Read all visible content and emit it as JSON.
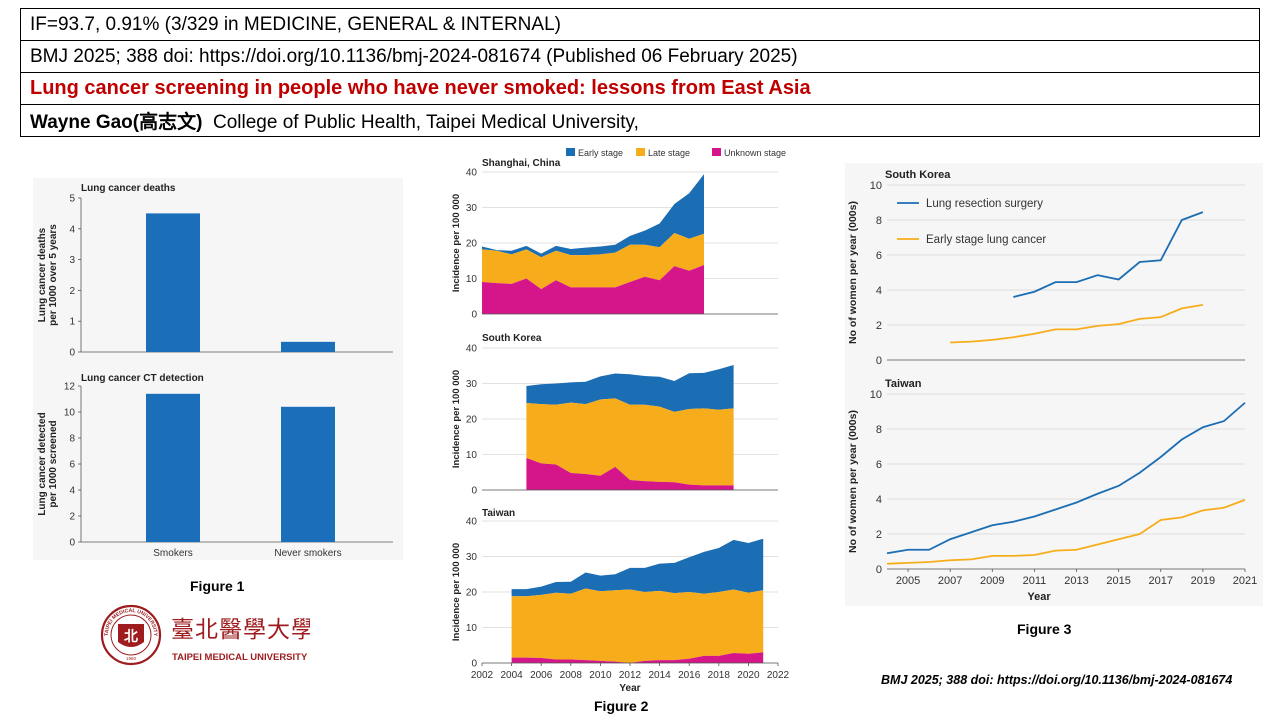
{
  "header": {
    "row1": "IF=93.7, 0.91% (3/329 in MEDICINE, GENERAL & INTERNAL)",
    "row2": "BMJ 2025; 388 doi: https://doi.org/10.1136/bmj-2024-081674 (Published 06 February 2025)",
    "row3": "Lung cancer screening in people who have never smoked: lessons from East Asia",
    "author_name": "Wayne Gao(高志文)",
    "author_affiliation": "College of Public Health, Taipei Medical University,"
  },
  "figure_labels": {
    "fig1": "Figure 1",
    "fig2": "Figure 2",
    "fig3": "Figure 3"
  },
  "logo": {
    "chinese": "臺北醫學大學",
    "english": "TAIPEI MEDICAL UNIVERSITY",
    "ring_text": "TAIPEI MEDICAL UNIVERSITY",
    "year": "1960",
    "seal_char": "北"
  },
  "footnote": "BMJ 2025; 388 doi: https://doi.org/10.1136/bmj-2024-081674",
  "colors": {
    "blue": "#1b6db4",
    "orange": "#f7ad1b",
    "magenta": "#d4168a",
    "title_red": "#c00000",
    "bar_blue": "#1b6fba",
    "logo_red": "#9e1b1e"
  },
  "chart_data": [
    {
      "id": "fig1a",
      "type": "bar",
      "title": "Lung cancer deaths",
      "ylabel": "Lung cancer deaths per 1000 over 5 years",
      "categories": [
        "Smokers",
        "Never smokers"
      ],
      "values": [
        4.5,
        0.33
      ],
      "ylim": [
        0,
        5
      ],
      "yticks": [
        "0",
        "1",
        "2",
        "3",
        "4",
        "5"
      ],
      "show_xticklabels": false,
      "grid": false
    },
    {
      "id": "fig1b",
      "type": "bar",
      "title": "Lung cancer CT detection",
      "ylabel": "Lung cancer detected per 1000 screened",
      "categories": [
        "Smokers",
        "Never smokers"
      ],
      "values": [
        11.4,
        10.4
      ],
      "ylim": [
        0,
        12
      ],
      "yticks": [
        "0",
        "2",
        "4",
        "6",
        "8",
        "10",
        "12"
      ],
      "show_xticklabels": true,
      "grid": false
    },
    {
      "id": "fig2",
      "type": "area",
      "stacked": true,
      "legend": [
        "Early stage",
        "Late stage",
        "Unknown stage"
      ],
      "legend_position": "top",
      "xlabel": "Year",
      "ylabel": "Incidence per 100 000",
      "xlim": [
        2002,
        2022
      ],
      "xticks": [
        "2002",
        "2004",
        "2006",
        "2008",
        "2010",
        "2012",
        "2014",
        "2016",
        "2018",
        "2020",
        "2022"
      ],
      "ylim": [
        0,
        40
      ],
      "yticks": [
        "0",
        "10",
        "20",
        "30",
        "40"
      ],
      "panels": [
        {
          "name": "Shanghai, China",
          "x": [
            2002,
            2003,
            2004,
            2005,
            2006,
            2007,
            2008,
            2009,
            2010,
            2011,
            2012,
            2013,
            2014,
            2015,
            2016,
            2017
          ],
          "unknown": [
            9,
            8.7,
            8.5,
            10,
            7,
            9.5,
            7.5,
            7.5,
            7.5,
            7.5,
            9,
            10.5,
            9.5,
            13.5,
            12.2,
            13.8
          ],
          "late": [
            18.2,
            17.8,
            16.8,
            18.2,
            16,
            17.8,
            16.6,
            16.6,
            16.8,
            17.3,
            19.5,
            19.5,
            18.8,
            22.8,
            21.2,
            22.6
          ],
          "early": [
            19,
            18,
            17.8,
            19.2,
            17,
            19.2,
            18.3,
            18.7,
            19,
            19.5,
            22,
            23.5,
            25.5,
            31,
            34,
            39.4
          ]
        },
        {
          "name": "South Korea",
          "x": [
            2005,
            2006,
            2007,
            2008,
            2009,
            2010,
            2011,
            2012,
            2013,
            2014,
            2015,
            2016,
            2017,
            2018,
            2019
          ],
          "unknown": [
            9,
            7.5,
            7.2,
            4.8,
            4.5,
            4,
            6.5,
            2.8,
            2.5,
            2.3,
            2.2,
            1.5,
            1.3,
            1.3,
            1.3
          ],
          "late": [
            24.5,
            24.2,
            24,
            24.6,
            24.2,
            25.5,
            25.8,
            24,
            24,
            23.5,
            22,
            22.8,
            23,
            22.6,
            23
          ],
          "early": [
            29.3,
            29.8,
            30,
            30.3,
            30.5,
            32,
            32.8,
            32.6,
            32.1,
            31.9,
            30.7,
            32.9,
            33,
            34,
            35.2
          ]
        },
        {
          "name": "Taiwan",
          "x": [
            2004,
            2005,
            2006,
            2007,
            2008,
            2009,
            2010,
            2011,
            2012,
            2013,
            2014,
            2015,
            2016,
            2017,
            2018,
            2019,
            2020,
            2021
          ],
          "unknown": [
            1.5,
            1.5,
            1.4,
            1,
            1,
            0.8,
            0.6,
            0.4,
            0,
            0.6,
            0.8,
            0.8,
            1.2,
            2,
            2,
            2.8,
            2.6,
            3
          ],
          "late": [
            18.8,
            18.8,
            19.2,
            19.8,
            19.5,
            21,
            20.2,
            20.5,
            20.7,
            20,
            20.3,
            19.7,
            20,
            19.5,
            20,
            20.7,
            19.8,
            20.5
          ],
          "early": [
            20.8,
            20.8,
            21.5,
            22.8,
            22.9,
            25.5,
            24.6,
            25,
            26.8,
            26.8,
            28,
            28.2,
            29.8,
            31.3,
            32.4,
            34.7,
            33.8,
            35
          ]
        }
      ]
    },
    {
      "id": "fig3",
      "type": "line",
      "xlabel": "Year",
      "ylabel": "No of women per year (000s)",
      "xlim": [
        2004,
        2021
      ],
      "xticks": [
        "2005",
        "2007",
        "2009",
        "2011",
        "2013",
        "2015",
        "2017",
        "2019",
        "2021"
      ],
      "ylim": [
        0,
        10
      ],
      "yticks": [
        "0",
        "2",
        "4",
        "6",
        "8",
        "10"
      ],
      "grid": true,
      "legend": [
        "Lung resection surgery",
        "Early stage lung cancer"
      ],
      "panels": [
        {
          "name": "South Korea",
          "series": [
            {
              "name": "Lung resection surgery",
              "x": [
                2010,
                2011,
                2012,
                2013,
                2014,
                2015,
                2016,
                2017,
                2018,
                2019
              ],
              "y": [
                3.6,
                3.9,
                4.45,
                4.45,
                4.85,
                4.6,
                5.6,
                5.7,
                8.0,
                8.45
              ]
            },
            {
              "name": "Early stage lung cancer",
              "x": [
                2007,
                2008,
                2009,
                2010,
                2011,
                2012,
                2013,
                2014,
                2015,
                2016,
                2017,
                2018,
                2019
              ],
              "y": [
                1.0,
                1.05,
                1.15,
                1.3,
                1.5,
                1.75,
                1.75,
                1.95,
                2.05,
                2.35,
                2.45,
                2.95,
                3.15
              ]
            }
          ]
        },
        {
          "name": "Taiwan",
          "series": [
            {
              "name": "Lung resection surgery",
              "x": [
                2004,
                2005,
                2006,
                2007,
                2008,
                2009,
                2010,
                2011,
                2012,
                2013,
                2014,
                2015,
                2016,
                2017,
                2018,
                2019,
                2020,
                2021
              ],
              "y": [
                0.9,
                1.1,
                1.1,
                1.7,
                2.1,
                2.5,
                2.7,
                3.0,
                3.4,
                3.8,
                4.3,
                4.75,
                5.5,
                6.4,
                7.4,
                8.1,
                8.45,
                9.5
              ]
            },
            {
              "name": "Early stage lung cancer",
              "x": [
                2004,
                2005,
                2006,
                2007,
                2008,
                2009,
                2010,
                2011,
                2012,
                2013,
                2014,
                2015,
                2016,
                2017,
                2018,
                2019,
                2020,
                2021
              ],
              "y": [
                0.3,
                0.35,
                0.4,
                0.5,
                0.55,
                0.75,
                0.75,
                0.8,
                1.05,
                1.1,
                1.4,
                1.7,
                2.0,
                2.8,
                2.95,
                3.35,
                3.5,
                3.95
              ]
            }
          ]
        }
      ]
    }
  ]
}
